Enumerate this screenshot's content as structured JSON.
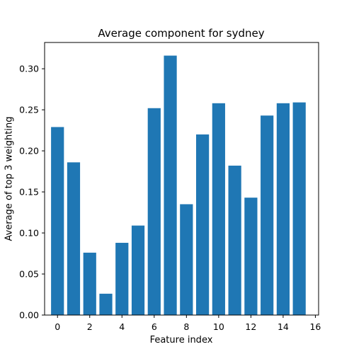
{
  "chart_data": {
    "type": "bar",
    "title": "Average component for sydney",
    "xlabel": "Feature index",
    "ylabel": "Average of top 3 weighting",
    "x": [
      0,
      1,
      2,
      3,
      4,
      5,
      6,
      7,
      8,
      9,
      10,
      11,
      12,
      13,
      14,
      15
    ],
    "values": [
      0.229,
      0.186,
      0.076,
      0.026,
      0.088,
      0.109,
      0.252,
      0.316,
      0.135,
      0.22,
      0.258,
      0.182,
      0.143,
      0.243,
      0.258,
      0.259
    ],
    "xlim": [
      -0.8,
      16.2
    ],
    "ylim": [
      0.0,
      0.332
    ],
    "xticks": [
      0,
      2,
      4,
      6,
      8,
      10,
      12,
      14,
      16
    ],
    "yticks": [
      0.0,
      0.05,
      0.1,
      0.15,
      0.2,
      0.25,
      0.3
    ],
    "ytick_labels": [
      "0.00",
      "0.05",
      "0.10",
      "0.15",
      "0.20",
      "0.25",
      "0.30"
    ],
    "bar_color": "#1f77b4",
    "grid": false,
    "legend": "none"
  }
}
